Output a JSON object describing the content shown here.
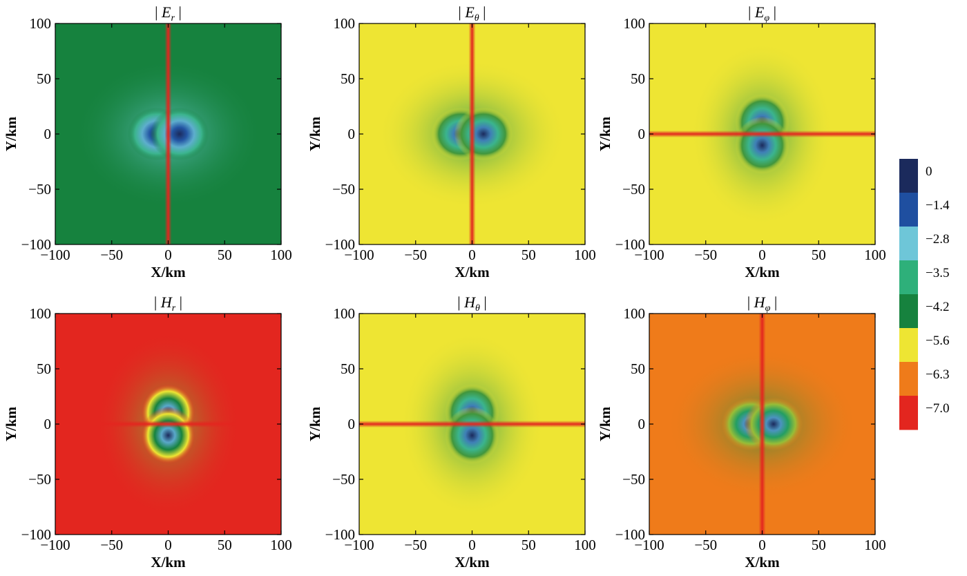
{
  "chart_data": [
    {
      "type": "heatmap",
      "title": "| E_r |",
      "title_symbol": "E",
      "title_subscript": "r",
      "xlabel": "X/km",
      "ylabel": "Y/km",
      "xlim": [
        -100,
        100
      ],
      "ylim": [
        -100,
        100
      ],
      "xticks": [
        -100,
        -50,
        0,
        50,
        100
      ],
      "yticks": [
        100,
        50,
        0,
        -50,
        -100
      ],
      "pattern": "two lobes along x-axis, low-value (red) line along Y axis",
      "background_level": -4.2,
      "peak_level": 0
    },
    {
      "type": "heatmap",
      "title": "| E_θ |",
      "title_symbol": "E",
      "title_subscript": "θ",
      "xlabel": "X/km",
      "ylabel": "Y/km",
      "xlim": [
        -100,
        100
      ],
      "ylim": [
        -100,
        100
      ],
      "xticks": [
        -100,
        -50,
        0,
        50,
        100
      ],
      "yticks": [
        100,
        50,
        0,
        -50,
        -100
      ],
      "pattern": "two lobes along x-axis, low-value (red) line along Y axis",
      "background_level": -5.6,
      "peak_level": 0
    },
    {
      "type": "heatmap",
      "title": "| E_φ |",
      "title_symbol": "E",
      "title_subscript": "φ",
      "xlabel": "X/km",
      "ylabel": "Y/km",
      "xlim": [
        -100,
        100
      ],
      "ylim": [
        -100,
        100
      ],
      "xticks": [
        -100,
        -50,
        0,
        50,
        100
      ],
      "yticks": [
        100,
        50,
        0,
        -50,
        -100
      ],
      "pattern": "two lobes along y-axis, low-value (red) line along X axis",
      "background_level": -5.6,
      "peak_level": 0
    },
    {
      "type": "heatmap",
      "title": "| H_r |",
      "title_symbol": "H",
      "title_subscript": "r",
      "xlabel": "X/km",
      "ylabel": "Y/km",
      "xlim": [
        -100,
        100
      ],
      "ylim": [
        -100,
        100
      ],
      "xticks": [
        -100,
        -50,
        0,
        50,
        100
      ],
      "yticks": [
        100,
        50,
        0,
        -50,
        -100
      ],
      "pattern": "two lobes along y-axis, low-value (red) line along X axis",
      "background_level": -7.0,
      "peak_level": 0
    },
    {
      "type": "heatmap",
      "title": "| H_θ |",
      "title_symbol": "H",
      "title_subscript": "θ",
      "xlabel": "X/km",
      "ylabel": "Y/km",
      "xlim": [
        -100,
        100
      ],
      "ylim": [
        -100,
        100
      ],
      "xticks": [
        -100,
        -50,
        0,
        50,
        100
      ],
      "yticks": [
        100,
        50,
        0,
        -50,
        -100
      ],
      "pattern": "two lobes along y-axis, low-value (red) line along X axis",
      "background_level": -5.6,
      "peak_level": 0
    },
    {
      "type": "heatmap",
      "title": "| H_φ |",
      "title_symbol": "H",
      "title_subscript": "φ",
      "xlabel": "X/km",
      "ylabel": "Y/km",
      "xlim": [
        -100,
        100
      ],
      "ylim": [
        -100,
        100
      ],
      "xticks": [
        -100,
        -50,
        0,
        50,
        100
      ],
      "yticks": [
        100,
        50,
        0,
        -50,
        -100
      ],
      "pattern": "two lobes along x-axis, low-value (red) line along Y axis",
      "background_level": -6.3,
      "peak_level": 0
    }
  ],
  "colorbar": {
    "labels": [
      "0",
      "−1.4",
      "−2.8",
      "−3.5",
      "−4.2",
      "−5.6",
      "−6.3",
      "−7.0"
    ],
    "values": [
      0,
      -1.4,
      -2.8,
      -3.5,
      -4.2,
      -5.6,
      -6.3,
      -7.0
    ],
    "colors": [
      "#1b2a5c",
      "#1f4fa0",
      "#6ec6d8",
      "#2eb07a",
      "#16823e",
      "#eee533",
      "#ef7b1a",
      "#e3261f"
    ]
  }
}
